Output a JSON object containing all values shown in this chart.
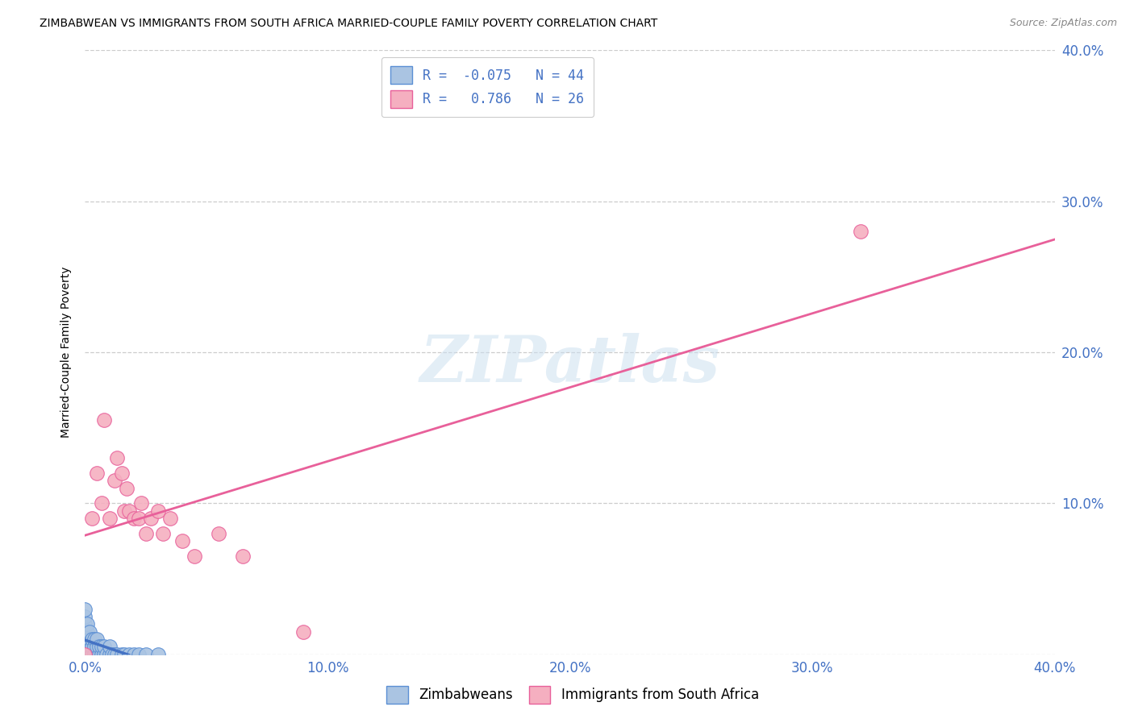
{
  "title": "ZIMBABWEAN VS IMMIGRANTS FROM SOUTH AFRICA MARRIED-COUPLE FAMILY POVERTY CORRELATION CHART",
  "source": "Source: ZipAtlas.com",
  "ylabel": "Married-Couple Family Poverty",
  "xlim": [
    0.0,
    0.4
  ],
  "ylim": [
    0.0,
    0.4
  ],
  "xtick_values": [
    0.0,
    0.1,
    0.2,
    0.3,
    0.4
  ],
  "xtick_labels": [
    "0.0%",
    "10.0%",
    "20.0%",
    "30.0%",
    "40.0%"
  ],
  "ytick_values": [
    0.0,
    0.1,
    0.2,
    0.3,
    0.4
  ],
  "ytick_labels_right": [
    "",
    "10.0%",
    "20.0%",
    "30.0%",
    "40.0%"
  ],
  "zimbabwean_color": "#aac4e2",
  "sa_color": "#f5afc0",
  "zimbabwean_edge": "#5b8fd4",
  "sa_edge": "#e8609a",
  "trend_zim_color": "#4472c4",
  "trend_sa_color": "#e8609a",
  "R_zim": -0.075,
  "N_zim": 44,
  "R_sa": 0.786,
  "N_sa": 26,
  "legend_label_zim": "Zimbabweans",
  "legend_label_sa": "Immigrants from South Africa",
  "watermark": "ZIPatlas",
  "zimbabwean_x": [
    0.0,
    0.0,
    0.0,
    0.0,
    0.0,
    0.0,
    0.0,
    0.001,
    0.001,
    0.001,
    0.001,
    0.001,
    0.002,
    0.002,
    0.002,
    0.002,
    0.003,
    0.003,
    0.003,
    0.004,
    0.004,
    0.004,
    0.005,
    0.005,
    0.005,
    0.006,
    0.006,
    0.007,
    0.007,
    0.008,
    0.008,
    0.009,
    0.01,
    0.01,
    0.011,
    0.012,
    0.013,
    0.015,
    0.016,
    0.018,
    0.02,
    0.022,
    0.025,
    0.03
  ],
  "zimbabwean_y": [
    0.0,
    0.005,
    0.01,
    0.015,
    0.02,
    0.025,
    0.03,
    0.0,
    0.005,
    0.01,
    0.015,
    0.02,
    0.0,
    0.005,
    0.01,
    0.015,
    0.0,
    0.005,
    0.01,
    0.0,
    0.005,
    0.01,
    0.0,
    0.005,
    0.01,
    0.0,
    0.005,
    0.0,
    0.005,
    0.0,
    0.005,
    0.0,
    0.0,
    0.005,
    0.0,
    0.0,
    0.0,
    0.0,
    0.0,
    0.0,
    0.0,
    0.0,
    0.0,
    0.0
  ],
  "sa_x": [
    0.0,
    0.003,
    0.005,
    0.007,
    0.008,
    0.01,
    0.012,
    0.013,
    0.015,
    0.016,
    0.017,
    0.018,
    0.02,
    0.022,
    0.023,
    0.025,
    0.027,
    0.03,
    0.032,
    0.035,
    0.04,
    0.045,
    0.055,
    0.065,
    0.09,
    0.32
  ],
  "sa_y": [
    0.0,
    0.09,
    0.12,
    0.1,
    0.155,
    0.09,
    0.115,
    0.13,
    0.12,
    0.095,
    0.11,
    0.095,
    0.09,
    0.09,
    0.1,
    0.08,
    0.09,
    0.095,
    0.08,
    0.09,
    0.075,
    0.065,
    0.08,
    0.065,
    0.015,
    0.28
  ],
  "trend_zim_solid_end": 0.018,
  "trend_sa_line": [
    0.0,
    0.4
  ]
}
